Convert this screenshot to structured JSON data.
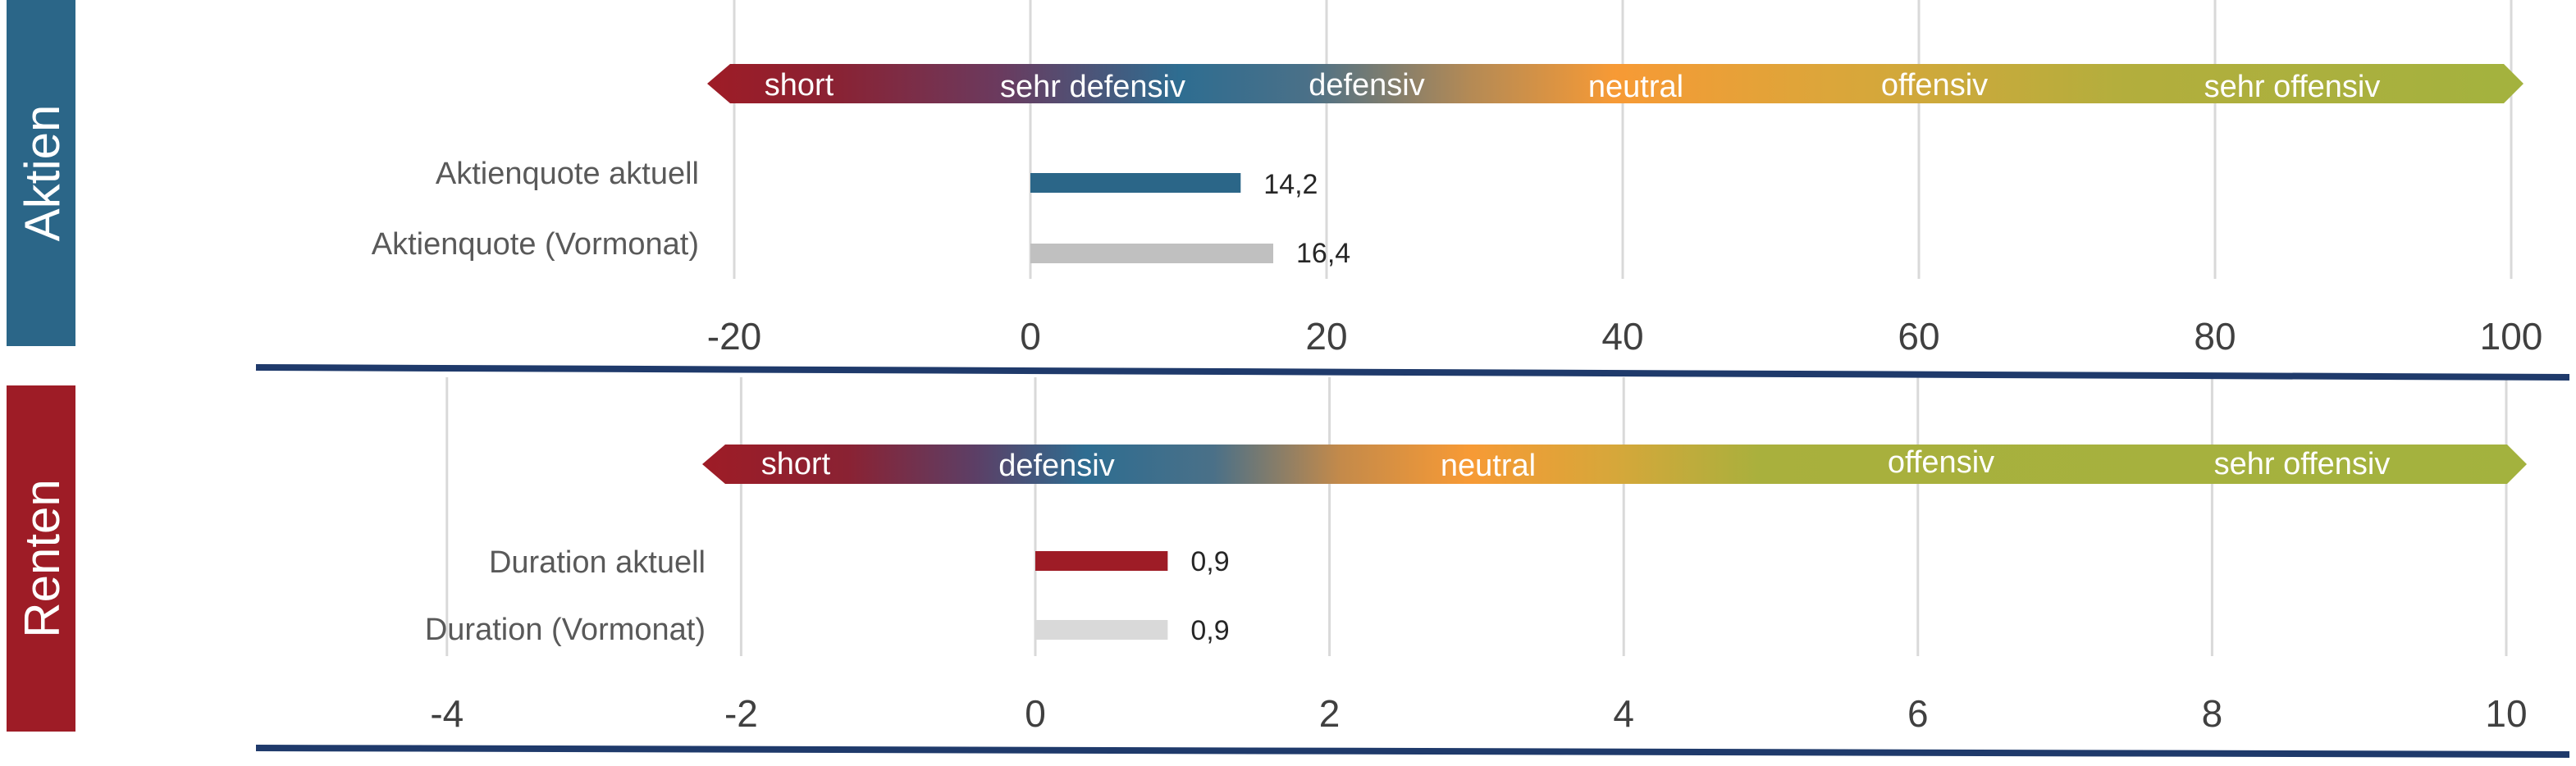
{
  "colors": {
    "accent_blue": "#2b6688",
    "accent_red": "#9e1c26",
    "prev_bar": "#c0c0c0",
    "prev_bar_light": "#d9d9d9",
    "divider": "#1f3a6b",
    "band_gradient": [
      "#9e1c26",
      "#2e6d91",
      "#f79a35",
      "#c8ad3a",
      "#a3b23e"
    ]
  },
  "chart_data": [
    {
      "type": "bar",
      "section_label": "Aktien",
      "band_labels": [
        "short",
        "sehr defensiv",
        "defensiv",
        "neutral",
        "offensiv",
        "sehr offensiv"
      ],
      "categories": [
        "Aktienquote aktuell",
        "Aktienquote (Vormonat)"
      ],
      "values": [
        14.2,
        16.4
      ],
      "value_labels": [
        "14,2",
        "16,4"
      ],
      "xlim": [
        -20,
        100
      ],
      "ticks": [
        -20,
        0,
        20,
        40,
        60,
        80,
        100
      ],
      "tick_labels": [
        "-20",
        "0",
        "20",
        "40",
        "60",
        "80",
        "100"
      ],
      "grid": true
    },
    {
      "type": "bar",
      "section_label": "Renten",
      "band_labels": [
        "short",
        "defensiv",
        "neutral",
        "offensiv",
        "sehr offensiv"
      ],
      "categories": [
        "Duration aktuell",
        "Duration (Vormonat)"
      ],
      "values": [
        0.9,
        0.9
      ],
      "value_labels": [
        "0,9",
        "0,9"
      ],
      "xlim": [
        -4,
        10
      ],
      "ticks": [
        -4,
        -2,
        0,
        2,
        4,
        6,
        8,
        10
      ],
      "tick_labels": [
        "-4",
        "-2",
        "0",
        "2",
        "4",
        "6",
        "8",
        "10"
      ],
      "grid": true
    }
  ]
}
